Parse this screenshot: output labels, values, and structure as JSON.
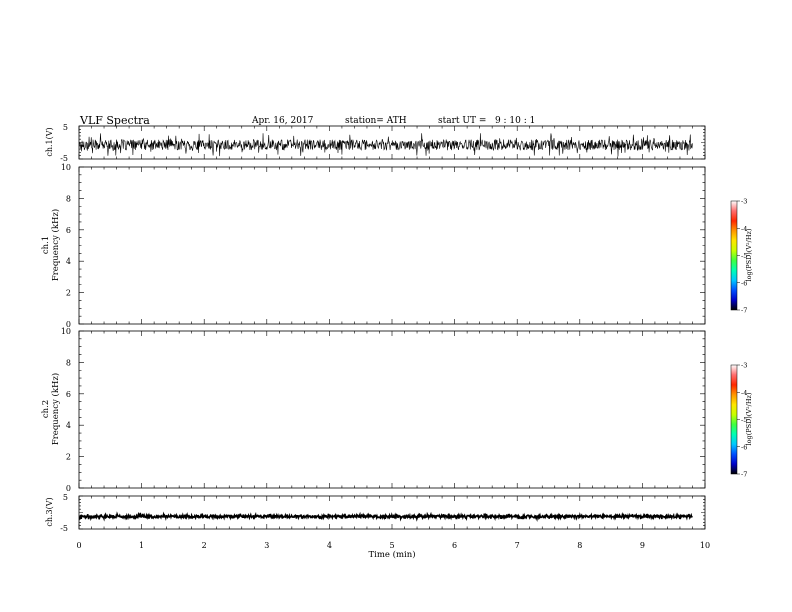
{
  "header": {
    "title": "VLF Spectra",
    "date": "Apr. 16, 2017",
    "station": "station= ATH",
    "start": "start UT =   9 : 10 : 1"
  },
  "colors": {
    "spectrogram_scale": [
      "#000000",
      "#0000c8",
      "#0050ff",
      "#00c8ff",
      "#00ffb4",
      "#40ff40",
      "#c8ff00",
      "#ffe600",
      "#ff9600",
      "#ff2800",
      "#ff6e6e",
      "#ffffff"
    ]
  },
  "chart_data": [
    {
      "name": "ch1-waveform",
      "type": "line",
      "ylabel": "ch.1(V)",
      "ylim": [
        -5,
        5
      ],
      "yticks": [
        "5",
        "-5"
      ],
      "xlim": [
        0,
        10
      ],
      "data_end_min": 9.8,
      "baseline": -0.7,
      "noise_amplitude": 1.6
    },
    {
      "name": "ch1-spectrogram",
      "type": "heatmap",
      "ylabel": "ch.1",
      "ylabel2": "Frequency (kHz)",
      "ylim": [
        0,
        10
      ],
      "yticks": [
        "0",
        "2",
        "4",
        "6",
        "8",
        "10"
      ],
      "xlim": [
        0,
        10
      ],
      "colorbar": {
        "label": "log(PSD)(V²/Hz)",
        "range": [
          -7,
          -3
        ],
        "ticks": [
          "-3",
          "-4",
          "-5",
          "-6",
          "-7"
        ]
      }
    },
    {
      "name": "ch2-spectrogram",
      "type": "heatmap",
      "ylabel": "ch.2",
      "ylabel2": "Frequency (kHz)",
      "ylim": [
        0,
        10
      ],
      "yticks": [
        "0",
        "2",
        "4",
        "6",
        "8",
        "10"
      ],
      "xlim": [
        0,
        10
      ],
      "colorbar": {
        "label": "log(PSD)(V²/Hz)",
        "range": [
          -7,
          -3
        ],
        "ticks": [
          "-3",
          "-4",
          "-5",
          "-6",
          "-7"
        ]
      }
    },
    {
      "name": "ch3-waveform",
      "type": "line",
      "ylabel": "ch.3(V)",
      "ylim": [
        -5,
        5
      ],
      "yticks": [
        "5",
        "-5"
      ],
      "xlim": [
        0,
        10
      ],
      "data_end_min": 9.8,
      "baseline": -1.2,
      "noise_amplitude": 0.4
    }
  ],
  "xaxis": {
    "label": "Time  (min)",
    "ticks": [
      "0",
      "1",
      "2",
      "3",
      "4",
      "5",
      "6",
      "7",
      "8",
      "9",
      "10"
    ]
  }
}
